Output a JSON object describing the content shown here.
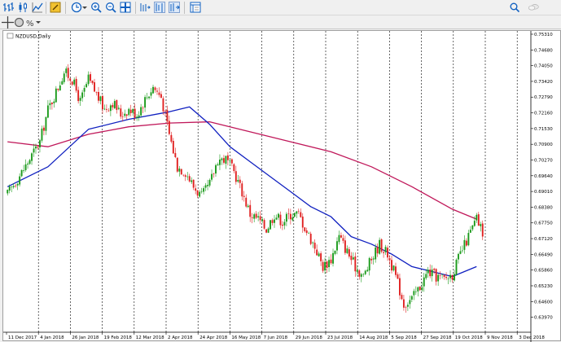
{
  "symbol_label": "NZDUSD,Daily",
  "toolbar": {
    "items": [
      "bar-chart-icon",
      "candles-icon",
      "line-chart-icon",
      "autotrading-icon",
      "clock-icon",
      "zoom-in-icon",
      "zoom-out-icon",
      "tile-windows-icon",
      "auto-scroll-icon",
      "chart-shift-icon",
      "templates-icon"
    ],
    "search_icon": "search-icon",
    "chat_icon": "chat-icon"
  },
  "toolbar2": {
    "items": [
      "crosshair-icon",
      "circle-icon",
      "objects-icon"
    ]
  },
  "colors": {
    "bull": "#1a9a1a",
    "bear": "#e02020",
    "ma_fast": "#1020c0",
    "ma_slow": "#c0185a",
    "grid": "#000000",
    "background": "#ffffff"
  },
  "chart_data": {
    "type": "candlestick",
    "symbol": "NZDUSD",
    "timeframe": "Daily",
    "ylim": [
      0.6337,
      0.7531
    ],
    "price_ticks": [
      "0.75310",
      "0.74680",
      "0.74050",
      "0.73420",
      "0.72790",
      "0.72160",
      "0.71530",
      "0.70900",
      "0.70270",
      "0.69640",
      "0.69010",
      "0.68380",
      "0.67750",
      "0.67120",
      "0.66490",
      "0.65860",
      "0.65230",
      "0.64600",
      "0.63970"
    ],
    "date_labels": [
      "11 Dec 2017",
      "4 Jan 2018",
      "26 Jan 2018",
      "19 Feb 2018",
      "12 Mar 2018",
      "2 Apr 2018",
      "24 Apr 2018",
      "16 May 2018",
      "7 Jun 2018",
      "29 Jun 2018",
      "23 Jul 2018",
      "14 Aug 2018",
      "5 Sep 2018",
      "27 Sep 2018",
      "19 Oct 2018",
      "9 Nov 2018",
      "3 Dec 2018"
    ],
    "close_path": [
      [
        0,
        0.689
      ],
      [
        8,
        0.699
      ],
      [
        16,
        0.71
      ],
      [
        20,
        0.723
      ],
      [
        24,
        0.73
      ],
      [
        28,
        0.738
      ],
      [
        32,
        0.735
      ],
      [
        36,
        0.726
      ],
      [
        40,
        0.735
      ],
      [
        44,
        0.729
      ],
      [
        48,
        0.723
      ],
      [
        52,
        0.726
      ],
      [
        56,
        0.721
      ],
      [
        60,
        0.723
      ],
      [
        64,
        0.721
      ],
      [
        68,
        0.727
      ],
      [
        72,
        0.732
      ],
      [
        76,
        0.728
      ],
      [
        80,
        0.713
      ],
      [
        84,
        0.7
      ],
      [
        88,
        0.698
      ],
      [
        92,
        0.692
      ],
      [
        96,
        0.688
      ],
      [
        100,
        0.693
      ],
      [
        104,
        0.703
      ],
      [
        108,
        0.703
      ],
      [
        112,
        0.698
      ],
      [
        116,
        0.69
      ],
      [
        120,
        0.681
      ],
      [
        124,
        0.679
      ],
      [
        128,
        0.675
      ],
      [
        132,
        0.681
      ],
      [
        136,
        0.678
      ],
      [
        140,
        0.681
      ],
      [
        144,
        0.681
      ],
      [
        148,
        0.674
      ],
      [
        152,
        0.668
      ],
      [
        156,
        0.66
      ],
      [
        160,
        0.663
      ],
      [
        164,
        0.672
      ],
      [
        168,
        0.666
      ],
      [
        172,
        0.66
      ],
      [
        176,
        0.656
      ],
      [
        180,
        0.663
      ],
      [
        184,
        0.669
      ],
      [
        188,
        0.665
      ],
      [
        192,
        0.656
      ],
      [
        196,
        0.645
      ],
      [
        200,
        0.647
      ],
      [
        204,
        0.652
      ],
      [
        208,
        0.658
      ],
      [
        212,
        0.656
      ],
      [
        216,
        0.655
      ],
      [
        220,
        0.657
      ],
      [
        224,
        0.665
      ],
      [
        228,
        0.672
      ],
      [
        232,
        0.679
      ],
      [
        236,
        0.672
      ]
    ],
    "ma_fast": [
      [
        0,
        0.692
      ],
      [
        20,
        0.7
      ],
      [
        40,
        0.715
      ],
      [
        60,
        0.719
      ],
      [
        80,
        0.722
      ],
      [
        90,
        0.724
      ],
      [
        100,
        0.717
      ],
      [
        110,
        0.708
      ],
      [
        120,
        0.702
      ],
      [
        130,
        0.696
      ],
      [
        140,
        0.69
      ],
      [
        150,
        0.684
      ],
      [
        160,
        0.68
      ],
      [
        170,
        0.672
      ],
      [
        180,
        0.669
      ],
      [
        190,
        0.665
      ],
      [
        200,
        0.66
      ],
      [
        210,
        0.658
      ],
      [
        220,
        0.656
      ],
      [
        232,
        0.66
      ]
    ],
    "ma_slow": [
      [
        0,
        0.71
      ],
      [
        20,
        0.708
      ],
      [
        40,
        0.713
      ],
      [
        60,
        0.716
      ],
      [
        80,
        0.7175
      ],
      [
        100,
        0.718
      ],
      [
        120,
        0.714
      ],
      [
        140,
        0.71
      ],
      [
        160,
        0.706
      ],
      [
        180,
        0.7
      ],
      [
        200,
        0.692
      ],
      [
        220,
        0.683
      ],
      [
        232,
        0.679
      ]
    ],
    "vertical_gridlines": true
  }
}
